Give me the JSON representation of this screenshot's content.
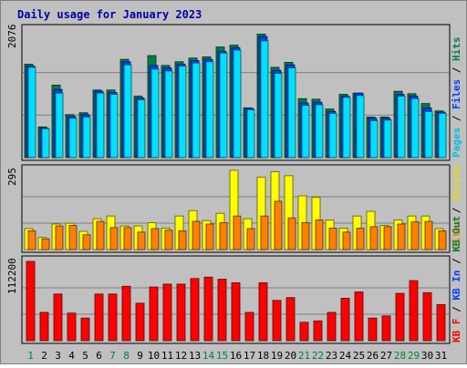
{
  "chart_data": [
    {
      "type": "bar",
      "title": "Daily usage for January 2023",
      "categories": [
        "1",
        "2",
        "3",
        "4",
        "5",
        "6",
        "7",
        "8",
        "9",
        "10",
        "11",
        "12",
        "13",
        "14",
        "15",
        "16",
        "17",
        "18",
        "19",
        "20",
        "21",
        "22",
        "23",
        "24",
        "25",
        "26",
        "27",
        "28",
        "29",
        "30",
        "31"
      ],
      "weekend_days": [
        "1",
        "7",
        "8",
        "14",
        "15",
        "21",
        "22",
        "28",
        "29"
      ],
      "ylabel_right": [
        "Pages",
        "Files",
        "Hits"
      ],
      "ytick_label": "2076",
      "ylim": [
        0,
        2076
      ],
      "series": [
        {
          "name": "Hits",
          "color": "#008040",
          "values": [
            1520,
            500,
            1180,
            700,
            730,
            1100,
            1100,
            1600,
            1000,
            1660,
            1500,
            1560,
            1620,
            1640,
            1800,
            1830,
            810,
            2010,
            1470,
            1550,
            960,
            950,
            790,
            1030,
            1050,
            660,
            660,
            1080,
            1040,
            880,
            760
          ]
        },
        {
          "name": "Files",
          "color": "#0040ff",
          "values": [
            1490,
            480,
            1110,
            670,
            700,
            1080,
            1060,
            1560,
            970,
            1500,
            1460,
            1520,
            1580,
            1600,
            1730,
            1790,
            800,
            1970,
            1420,
            1510,
            890,
            900,
            750,
            1000,
            1050,
            640,
            640,
            1030,
            1000,
            810,
            740
          ]
        },
        {
          "name": "Pages",
          "color": "#00e0ff",
          "values": [
            1470,
            470,
            1050,
            640,
            660,
            1050,
            1030,
            1510,
            940,
            1440,
            1410,
            1490,
            1540,
            1560,
            1700,
            1750,
            780,
            1900,
            1370,
            1460,
            850,
            860,
            720,
            980,
            1010,
            600,
            610,
            1000,
            960,
            750,
            720
          ]
        }
      ]
    },
    {
      "type": "bar",
      "categories": [
        "1",
        "2",
        "3",
        "4",
        "5",
        "6",
        "7",
        "8",
        "9",
        "10",
        "11",
        "12",
        "13",
        "14",
        "15",
        "16",
        "17",
        "18",
        "19",
        "20",
        "21",
        "22",
        "23",
        "24",
        "25",
        "26",
        "27",
        "28",
        "29",
        "30",
        "31"
      ],
      "ylabel_right": [
        "Sites",
        "Visits"
      ],
      "ytick_label": "295",
      "ylim": [
        0,
        295
      ],
      "series": [
        {
          "name": "Visits",
          "color": "#ffff00",
          "values": [
            78,
            45,
            95,
            98,
            68,
            115,
            125,
            88,
            88,
            100,
            80,
            125,
            145,
            108,
            135,
            295,
            115,
            270,
            290,
            275,
            200,
            195,
            110,
            80,
            125,
            142,
            90,
            110,
            125,
            125,
            78
          ]
        },
        {
          "name": "Sites",
          "color": "#ff8000",
          "values": [
            70,
            40,
            88,
            90,
            55,
            105,
            82,
            82,
            65,
            78,
            72,
            70,
            105,
            95,
            100,
            125,
            78,
            125,
            180,
            118,
            100,
            110,
            80,
            65,
            80,
            85,
            85,
            95,
            103,
            105,
            70
          ]
        }
      ]
    },
    {
      "type": "bar",
      "categories": [
        "1",
        "2",
        "3",
        "4",
        "5",
        "6",
        "7",
        "8",
        "9",
        "10",
        "11",
        "12",
        "13",
        "14",
        "15",
        "16",
        "17",
        "18",
        "19",
        "20",
        "21",
        "22",
        "23",
        "24",
        "25",
        "26",
        "27",
        "28",
        "29",
        "30",
        "31"
      ],
      "ylabel_right": [
        "KB F",
        "KB In",
        "KB Out"
      ],
      "ytick_label": "112200",
      "ylim": [
        0,
        112200
      ],
      "series": [
        {
          "name": "KB F",
          "color": "#ff0000",
          "values": [
            112200,
            40000,
            66000,
            39000,
            32000,
            66000,
            66000,
            77000,
            53000,
            76000,
            80000,
            80000,
            88000,
            90000,
            87000,
            82000,
            40000,
            82000,
            57000,
            61000,
            26000,
            28000,
            40000,
            60000,
            69000,
            32000,
            35000,
            67000,
            85000,
            68000,
            51000
          ]
        }
      ]
    }
  ]
}
